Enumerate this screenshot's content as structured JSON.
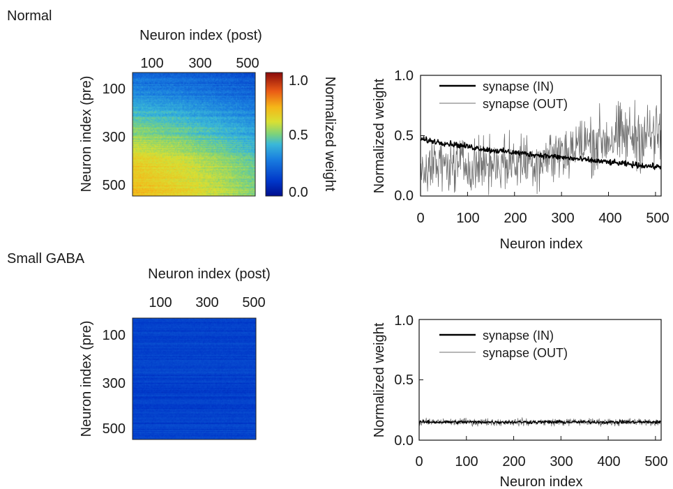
{
  "sections": [
    {
      "label": "Normal"
    },
    {
      "label": "Small GABA"
    }
  ],
  "colorbar": {
    "label": "Normalized weight",
    "ticks": [
      0.0,
      0.5,
      1.0
    ],
    "tick_labels": [
      "0.0",
      "0.5",
      "1.0"
    ]
  },
  "chart_data": [
    {
      "type": "heatmap",
      "panel": "Normal",
      "xlabel": "Neuron index (post)",
      "ylabel": "Neuron index (pre)",
      "x_ticks": [
        "100",
        "300",
        "500"
      ],
      "y_ticks": [
        "100",
        "300",
        "500"
      ],
      "xlim": [
        1,
        512
      ],
      "ylim": [
        1,
        512
      ],
      "value_range": [
        0.0,
        1.0
      ],
      "colormap": "jet",
      "description_values": {
        "rows": [
          1,
          64,
          128,
          192,
          256,
          320,
          384,
          448,
          512
        ],
        "mean_weight_by_pre_row": [
          0.25,
          0.3,
          0.38,
          0.46,
          0.52,
          0.6,
          0.66,
          0.68,
          0.72
        ],
        "post_column_falloff": [
          [
            1,
            1.0
          ],
          [
            200,
            0.92
          ],
          [
            400,
            0.8
          ],
          [
            512,
            0.72
          ]
        ]
      }
    },
    {
      "type": "line",
      "panel": "Normal",
      "xlabel": "Neuron index",
      "ylabel": "Normalized weight",
      "xlim": [
        0,
        512
      ],
      "ylim": [
        0.0,
        1.0
      ],
      "x_ticks": [
        0,
        100,
        200,
        300,
        400,
        500
      ],
      "y_ticks": [
        0.0,
        0.5,
        1.0
      ],
      "y_tick_labels": [
        "0.0",
        "0.5",
        "1.0"
      ],
      "legend": "top-left",
      "series": [
        {
          "name": "synapse (IN)",
          "color": "#000000",
          "x": [
            0,
            50,
            100,
            150,
            200,
            250,
            300,
            350,
            400,
            450,
            512
          ],
          "values": [
            0.47,
            0.44,
            0.41,
            0.38,
            0.36,
            0.34,
            0.32,
            0.3,
            0.28,
            0.26,
            0.24
          ]
        },
        {
          "name": "synapse (OUT)",
          "color": "#6e6e6e",
          "x": [
            0,
            50,
            100,
            150,
            200,
            250,
            300,
            350,
            400,
            450,
            512
          ],
          "values": [
            0.25,
            0.25,
            0.26,
            0.27,
            0.28,
            0.3,
            0.36,
            0.43,
            0.48,
            0.5,
            0.5
          ]
        }
      ]
    },
    {
      "type": "heatmap",
      "panel": "Small GABA",
      "xlabel": "Neuron index (post)",
      "ylabel": "Neuron index (pre)",
      "x_ticks": [
        "100",
        "300",
        "500"
      ],
      "y_ticks": [
        "100",
        "300",
        "500"
      ],
      "xlim": [
        1,
        512
      ],
      "ylim": [
        1,
        512
      ],
      "value_range": [
        0.0,
        1.0
      ],
      "colormap": "jet",
      "description_values": {
        "rows": [
          1,
          512
        ],
        "mean_weight_by_pre_row": [
          0.15,
          0.15
        ]
      }
    },
    {
      "type": "line",
      "panel": "Small GABA",
      "xlabel": "Neuron index",
      "ylabel": "Normalized weight",
      "xlim": [
        0,
        512
      ],
      "ylim": [
        0.0,
        1.0
      ],
      "x_ticks": [
        0,
        100,
        200,
        300,
        400,
        500
      ],
      "y_ticks": [
        0.0,
        0.5,
        1.0
      ],
      "y_tick_labels": [
        "0.0",
        "0.5",
        "1.0"
      ],
      "legend": "top-left",
      "series": [
        {
          "name": "synapse (IN)",
          "color": "#000000",
          "x": [
            0,
            100,
            200,
            300,
            400,
            512
          ],
          "values": [
            0.15,
            0.15,
            0.15,
            0.15,
            0.15,
            0.15
          ]
        },
        {
          "name": "synapse (OUT)",
          "color": "#6e6e6e",
          "x": [
            0,
            100,
            200,
            300,
            400,
            512
          ],
          "values": [
            0.15,
            0.15,
            0.15,
            0.15,
            0.15,
            0.15
          ]
        }
      ]
    }
  ]
}
